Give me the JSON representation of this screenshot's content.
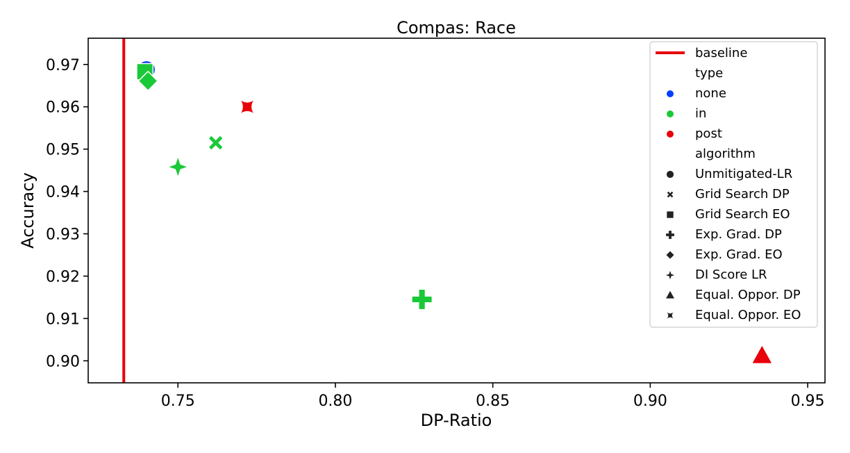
{
  "chart_data": {
    "type": "scatter",
    "title": "Compas: Race",
    "xlabel": "DP-Ratio",
    "ylabel": "Accuracy",
    "xlim": [
      0.7215,
      0.9555
    ],
    "ylim": [
      0.8948,
      0.9762
    ],
    "x_ticks": [
      0.75,
      0.8,
      0.85,
      0.9,
      0.95
    ],
    "x_tick_labels": [
      "0.75",
      "0.80",
      "0.85",
      "0.90",
      "0.95"
    ],
    "y_ticks": [
      0.9,
      0.91,
      0.92,
      0.93,
      0.94,
      0.95,
      0.96,
      0.97
    ],
    "y_tick_labels": [
      "0.90",
      "0.91",
      "0.92",
      "0.93",
      "0.94",
      "0.95",
      "0.96",
      "0.97"
    ],
    "grid": false,
    "legend_position": "top-right",
    "baseline": {
      "label": "baseline",
      "x": 0.7328,
      "color": "#e8000b"
    },
    "type_colors": {
      "none": "#023eff",
      "in": "#1ac938",
      "post": "#e8000b"
    },
    "points": [
      {
        "algorithm": "Unmitigated-LR",
        "type": "none",
        "x": 0.74,
        "y": 0.9688,
        "marker": "circle"
      },
      {
        "algorithm": "Grid Search DP",
        "type": "in",
        "x": 0.762,
        "y": 0.9515,
        "marker": "x"
      },
      {
        "algorithm": "Grid Search EO",
        "type": "in",
        "x": 0.7395,
        "y": 0.9683,
        "marker": "square"
      },
      {
        "algorithm": "Exp. Grad. DP",
        "type": "in",
        "x": 0.8275,
        "y": 0.9145,
        "marker": "plus"
      },
      {
        "algorithm": "Exp. Grad. EO",
        "type": "in",
        "x": 0.7405,
        "y": 0.9661,
        "marker": "diamond"
      },
      {
        "algorithm": "DI Score LR",
        "type": "in",
        "x": 0.75,
        "y": 0.9458,
        "marker": "star4"
      },
      {
        "algorithm": "Equal. Oppor. DP",
        "type": "post",
        "x": 0.9355,
        "y": 0.9012,
        "marker": "triangle"
      },
      {
        "algorithm": "Equal. Oppor. EO",
        "type": "post",
        "x": 0.772,
        "y": 0.96,
        "marker": "star4-concave"
      }
    ],
    "legend": {
      "baseline_label": "baseline",
      "type_header": "type",
      "type_entries": [
        {
          "label": "none",
          "color": "#023eff"
        },
        {
          "label": "in",
          "color": "#1ac938"
        },
        {
          "label": "post",
          "color": "#e8000b"
        }
      ],
      "algorithm_header": "algorithm",
      "algorithm_entries": [
        {
          "label": "Unmitigated-LR",
          "marker": "circle"
        },
        {
          "label": "Grid Search DP",
          "marker": "x"
        },
        {
          "label": "Grid Search EO",
          "marker": "square"
        },
        {
          "label": "Exp. Grad. DP",
          "marker": "plus"
        },
        {
          "label": "Exp. Grad. EO",
          "marker": "diamond"
        },
        {
          "label": "DI Score LR",
          "marker": "star4"
        },
        {
          "label": "Equal. Oppor. DP",
          "marker": "triangle"
        },
        {
          "label": "Equal. Oppor. EO",
          "marker": "star4-concave"
        }
      ]
    }
  }
}
